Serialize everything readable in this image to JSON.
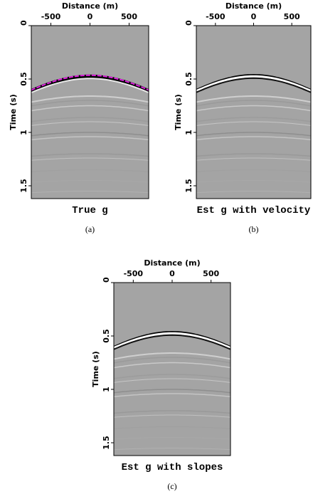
{
  "figure": {
    "panels": [
      {
        "x_label": "Distance (m)",
        "y_label": "Time (s)",
        "xticks": [
          -500,
          0,
          500
        ],
        "yticks": [
          0,
          0.5,
          1,
          1.5
        ],
        "xlim": [
          -750,
          750
        ],
        "ylim": [
          0,
          1.62
        ],
        "title": "True g",
        "caption": "(a)"
      },
      {
        "x_label": "Distance (m)",
        "y_label": "Time (s)",
        "xticks": [
          -500,
          0,
          500
        ],
        "yticks": [
          0,
          0.5,
          1,
          1.5
        ],
        "xlim": [
          -750,
          750
        ],
        "ylim": [
          0,
          1.62
        ],
        "title": "Est g with velocity",
        "caption": "(b)"
      },
      {
        "x_label": "Distance (m)",
        "y_label": "Time (s)",
        "xticks": [
          -500,
          0,
          500
        ],
        "yticks": [
          0,
          0.5,
          1,
          1.5
        ],
        "xlim": [
          -750,
          750
        ],
        "ylim": [
          0,
          1.62
        ],
        "title": "Est g with slopes",
        "caption": "(c)"
      }
    ]
  }
}
